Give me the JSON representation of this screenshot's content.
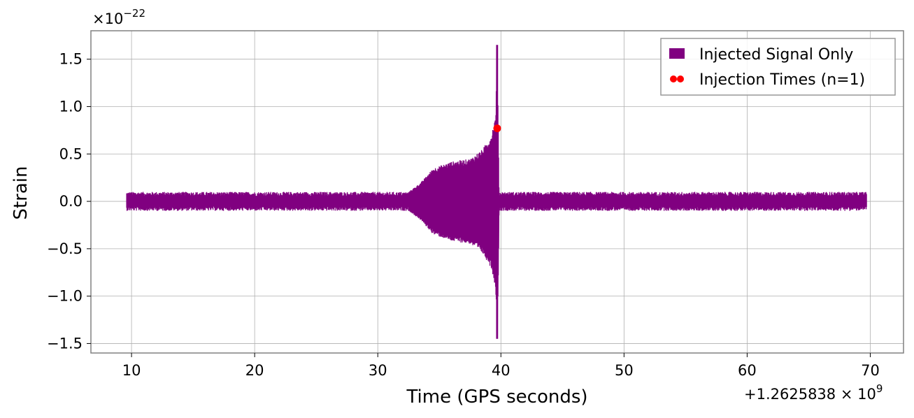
{
  "chart_data": {
    "type": "line",
    "xlabel": "Time (GPS seconds)",
    "ylabel": "Strain",
    "x_offset_text": "+1.2625838 × 10",
    "x_offset_exp": "9",
    "y_multiplier_text": "×10",
    "y_multiplier_exp": "−22",
    "xlim": [
      6.7,
      72.7
    ],
    "ylim": [
      -1.6,
      1.8
    ],
    "x_ticks": [
      10,
      20,
      30,
      40,
      50,
      60,
      70
    ],
    "x_tick_labels": [
      "10",
      "20",
      "30",
      "40",
      "50",
      "60",
      "70"
    ],
    "y_ticks": [
      -1.5,
      -1.0,
      -0.5,
      0.0,
      0.5,
      1.0,
      1.5
    ],
    "y_tick_labels": [
      "−1.5",
      "−1.0",
      "−0.5",
      "0.0",
      "0.5",
      "1.0",
      "1.5"
    ],
    "grid": true,
    "legend_position": "top-right",
    "series": [
      {
        "name": "Injected Signal Only",
        "kind": "signal",
        "color": "#800080",
        "x_range": [
          9.6,
          69.7
        ],
        "noise_amplitude": 0.1,
        "chirp": {
          "start": 32.5,
          "peak": 39.7,
          "end": 39.85,
          "envelope": [
            [
              32.5,
              0.1
            ],
            [
              33.5,
              0.2
            ],
            [
              34.5,
              0.35
            ],
            [
              36,
              0.42
            ],
            [
              37.5,
              0.45
            ],
            [
              38.5,
              0.55
            ],
            [
              39.2,
              0.7
            ],
            [
              39.55,
              0.9
            ],
            [
              39.65,
              1.3
            ],
            [
              39.7,
              1.65
            ],
            [
              39.75,
              1.3
            ],
            [
              39.85,
              0.1
            ]
          ],
          "max": 1.65,
          "min": -1.45
        }
      },
      {
        "name": "Injection Times (n=1)",
        "kind": "marker",
        "color": "#ff0000",
        "points": [
          {
            "x": 39.7,
            "y": 0.77
          }
        ]
      }
    ]
  }
}
